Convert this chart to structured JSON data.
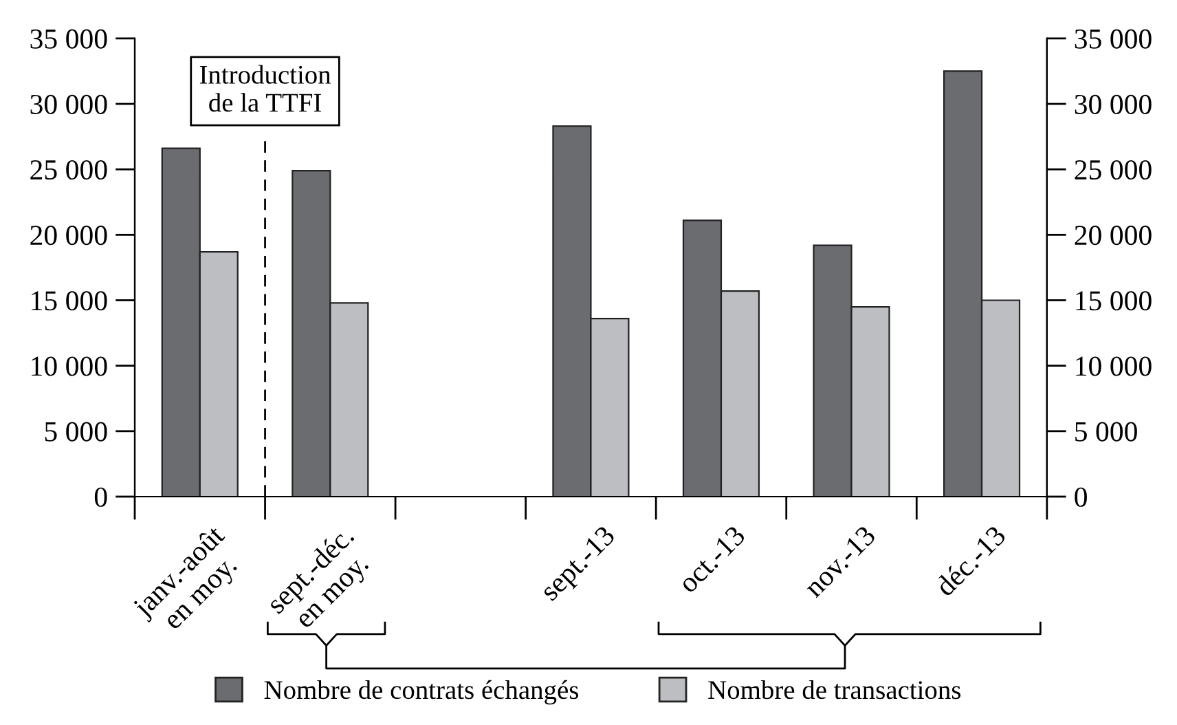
{
  "chart_data": {
    "type": "bar",
    "categories": [
      "janv.-août\nen moy.",
      "sept.-déc.\nen moy.",
      null,
      "sept.-13",
      "oct.-13",
      "nov.-13",
      "déc.-13"
    ],
    "series": [
      {
        "name": "Nombre de contrats échangés",
        "color": "#6b6c70",
        "values": [
          26600,
          24900,
          null,
          28300,
          21100,
          19200,
          32500
        ]
      },
      {
        "name": "Nombre de transactions",
        "color": "#bdbec2",
        "values": [
          18700,
          14800,
          null,
          13600,
          15700,
          14500,
          15000
        ]
      }
    ],
    "ylim": [
      0,
      35000
    ],
    "yticks": [
      0,
      {
        "value": 5000,
        "label": "5 000"
      },
      {
        "value": 10000,
        "label": "10 000"
      },
      {
        "value": 15000,
        "label": "15 000"
      },
      {
        "value": 20000,
        "label": "20 000"
      },
      {
        "value": 25000,
        "label": "25 000"
      },
      {
        "value": 30000,
        "label": "30 000"
      },
      {
        "value": 35000,
        "label": "35 000"
      }
    ],
    "y2lim": [
      0,
      35000
    ],
    "y2ticks": [
      0,
      {
        "value": 5000,
        "label": "5 000"
      },
      {
        "value": 10000,
        "label": "10 000"
      },
      {
        "value": 15000,
        "label": "15 000"
      },
      {
        "value": 20000,
        "label": "20 000"
      },
      {
        "value": 25000,
        "label": "25 000"
      },
      {
        "value": 30000,
        "label": "30 000"
      },
      {
        "value": 35000,
        "label": "35 000"
      }
    ],
    "annotations": [
      "Introduction\nde la TTFI"
    ],
    "grid": false,
    "legend": "bottom"
  }
}
